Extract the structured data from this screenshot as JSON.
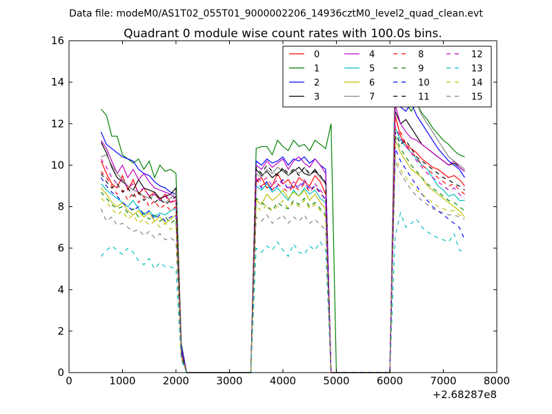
{
  "header": {
    "suptitle": "Data file: modeM0/AS1T02_055T01_9000002206_14936cztM0_level2_quad_clean.evt"
  },
  "chart_data": {
    "type": "line",
    "title": "Quadrant 0 module wise count rates with 100.0s bins.",
    "xlabel": "",
    "ylabel": "",
    "x_offset_label": "+2.68287e8",
    "xlim": [
      0,
      8000
    ],
    "ylim": [
      0,
      16
    ],
    "xticks": [
      0,
      1000,
      2000,
      3000,
      4000,
      5000,
      6000,
      7000,
      8000
    ],
    "yticks": [
      0,
      2,
      4,
      6,
      8,
      10,
      12,
      14,
      16
    ],
    "grid": false,
    "legend_position": "top-right",
    "x": [
      600,
      700,
      800,
      900,
      1000,
      1100,
      1200,
      1300,
      1400,
      1500,
      1600,
      1700,
      1800,
      1900,
      2000,
      2100,
      2200,
      2300,
      2400,
      2500,
      2600,
      2700,
      2800,
      2900,
      3000,
      3100,
      3200,
      3300,
      3400,
      3500,
      3600,
      3700,
      3800,
      3900,
      4000,
      4100,
      4200,
      4300,
      4400,
      4500,
      4600,
      4700,
      4800,
      4900,
      5000,
      5100,
      5200,
      5300,
      5400,
      5500,
      5600,
      5700,
      5800,
      5900,
      6000,
      6100,
      6200,
      6300,
      6400,
      6500,
      6600,
      6700,
      6800,
      6900,
      7000,
      7100,
      7200,
      7300,
      7400
    ],
    "series": [
      {
        "name": "0",
        "color": "#ff0000",
        "dash": "solid",
        "values": [
          10.2,
          9.6,
          9.1,
          8.9,
          9.5,
          8.8,
          9.3,
          8.6,
          8.9,
          8.5,
          8.7,
          8.3,
          8.6,
          8.2,
          8.3,
          1.2,
          0,
          0,
          0,
          0,
          0,
          0,
          0,
          0,
          0,
          0,
          0,
          0,
          0,
          9.2,
          9.4,
          8.9,
          9.0,
          9.6,
          9.1,
          9.3,
          8.9,
          9.4,
          9.2,
          9.0,
          9.5,
          9.2,
          8.6,
          0,
          0,
          0,
          0,
          0,
          0,
          0,
          0,
          0,
          0,
          0,
          0,
          12.4,
          11.4,
          11.0,
          10.8,
          10.6,
          10.3,
          10.1,
          9.9,
          9.8,
          9.6,
          9.4,
          9.5,
          9.3,
          9.0
        ]
      },
      {
        "name": "1",
        "color": "#008000",
        "dash": "solid",
        "values": [
          12.7,
          12.4,
          11.4,
          11.4,
          10.5,
          10.3,
          10.1,
          10.3,
          9.8,
          10.2,
          9.4,
          10.0,
          9.7,
          9.8,
          9.6,
          1.4,
          0,
          0,
          0,
          0,
          0,
          0,
          0,
          0,
          0,
          0,
          0,
          0,
          0,
          10.8,
          10.9,
          10.9,
          10.5,
          11.2,
          10.9,
          10.7,
          11.2,
          10.9,
          11.0,
          10.7,
          11.2,
          11.0,
          10.8,
          12.0,
          0,
          0,
          0,
          0,
          0,
          0,
          0,
          0,
          0,
          0,
          0,
          12.8,
          13.7,
          13.0,
          12.6,
          13.0,
          12.5,
          12.2,
          11.8,
          11.5,
          11.2,
          11.0,
          10.7,
          10.5,
          10.4
        ]
      },
      {
        "name": "2",
        "color": "#0000ff",
        "dash": "solid",
        "values": [
          11.6,
          11.0,
          10.8,
          10.6,
          10.4,
          10.3,
          10.2,
          9.8,
          9.6,
          9.5,
          9.2,
          9.0,
          8.9,
          8.7,
          8.6,
          1.3,
          0,
          0,
          0,
          0,
          0,
          0,
          0,
          0,
          0,
          0,
          0,
          0,
          0,
          10.2,
          10.0,
          10.3,
          10.1,
          10.2,
          10.4,
          10.0,
          10.3,
          10.2,
          10.4,
          10.1,
          10.3,
          10.0,
          9.8,
          0,
          0,
          0,
          0,
          0,
          0,
          0,
          0,
          0,
          0,
          0,
          0,
          13.2,
          12.8,
          12.6,
          13.0,
          12.4,
          12.0,
          11.6,
          11.2,
          10.8,
          10.5,
          10.2,
          10.0,
          9.8,
          9.4
        ]
      },
      {
        "name": "3",
        "color": "#000000",
        "dash": "solid",
        "values": [
          11.1,
          10.6,
          9.9,
          9.4,
          9.2,
          9.0,
          8.8,
          9.3,
          8.9,
          8.8,
          8.7,
          8.4,
          8.5,
          8.6,
          8.9,
          1.0,
          0,
          0,
          0,
          0,
          0,
          0,
          0,
          0,
          0,
          0,
          0,
          0,
          0,
          9.8,
          9.5,
          9.7,
          9.4,
          9.6,
          9.8,
          9.5,
          9.7,
          9.9,
          9.6,
          9.5,
          9.8,
          9.4,
          9.2,
          0,
          0,
          0,
          0,
          0,
          0,
          0,
          0,
          0,
          0,
          0,
          0,
          12.6,
          12.0,
          12.2,
          11.8,
          11.4,
          11.0,
          10.8,
          10.6,
          10.4,
          10.2,
          10.0,
          10.1,
          9.9,
          9.7
        ]
      },
      {
        "name": "4",
        "color": "#bf00bf",
        "dash": "solid",
        "values": [
          11.2,
          10.8,
          10.2,
          9.6,
          10.0,
          9.4,
          9.8,
          9.3,
          9.6,
          9.2,
          8.9,
          8.8,
          8.7,
          8.6,
          8.4,
          1.1,
          0,
          0,
          0,
          0,
          0,
          0,
          0,
          0,
          0,
          0,
          0,
          0,
          0,
          10.0,
          9.8,
          10.2,
          9.9,
          10.1,
          10.3,
          9.8,
          10.2,
          10.4,
          10.1,
          9.9,
          10.3,
          10.0,
          9.6,
          0,
          0,
          0,
          0,
          0,
          0,
          0,
          0,
          0,
          0,
          0,
          0,
          12.9,
          12.0,
          11.6,
          11.3,
          11.2,
          11.0,
          10.8,
          10.6,
          10.4,
          10.2,
          10.0,
          10.2,
          9.9,
          9.7
        ]
      },
      {
        "name": "5",
        "color": "#00bfbf",
        "dash": "solid",
        "values": [
          9.1,
          8.8,
          8.6,
          8.4,
          8.2,
          8.0,
          8.3,
          7.9,
          7.6,
          7.8,
          7.5,
          7.7,
          7.6,
          7.8,
          7.9,
          0.9,
          0,
          0,
          0,
          0,
          0,
          0,
          0,
          0,
          0,
          0,
          0,
          0,
          0,
          9.0,
          8.8,
          9.1,
          8.7,
          8.9,
          8.6,
          8.3,
          8.8,
          8.5,
          8.9,
          8.6,
          8.8,
          8.4,
          8.2,
          0,
          0,
          0,
          0,
          0,
          0,
          0,
          0,
          0,
          0,
          0,
          0,
          11.8,
          11.2,
          10.9,
          10.6,
          10.3,
          10.0,
          9.8,
          9.4,
          9.0,
          8.8,
          8.5,
          8.6,
          8.3,
          8.3
        ]
      },
      {
        "name": "6",
        "color": "#bfbf00",
        "dash": "solid",
        "values": [
          8.9,
          8.6,
          8.2,
          8.0,
          8.2,
          7.8,
          7.6,
          7.8,
          7.5,
          7.7,
          7.3,
          7.5,
          7.2,
          7.4,
          7.6,
          0.8,
          0,
          0,
          0,
          0,
          0,
          0,
          0,
          0,
          0,
          0,
          0,
          0,
          0,
          8.3,
          8.1,
          8.6,
          8.3,
          8.5,
          8.8,
          8.4,
          8.7,
          8.5,
          8.8,
          8.3,
          8.6,
          8.2,
          7.9,
          0,
          0,
          0,
          0,
          0,
          0,
          0,
          0,
          0,
          0,
          0,
          0,
          11.2,
          10.6,
          10.2,
          9.8,
          9.6,
          9.4,
          9.0,
          8.8,
          8.6,
          8.4,
          8.2,
          8.0,
          7.8,
          7.5
        ]
      },
      {
        "name": "7",
        "color": "#808080",
        "dash": "solid",
        "values": [
          10.4,
          10.5,
          10.0,
          9.6,
          9.3,
          9.0,
          8.8,
          8.7,
          8.5,
          8.4,
          8.6,
          8.3,
          8.2,
          8.4,
          8.7,
          1.0,
          0,
          0,
          0,
          0,
          0,
          0,
          0,
          0,
          0,
          0,
          0,
          0,
          0,
          9.6,
          9.4,
          9.8,
          9.6,
          9.9,
          9.7,
          9.5,
          9.8,
          9.6,
          9.9,
          9.5,
          9.7,
          9.4,
          9.1,
          0,
          0,
          0,
          0,
          0,
          0,
          0,
          0,
          0,
          0,
          0,
          0,
          15.1,
          14.1,
          14.0,
          13.6,
          13.0,
          12.4,
          12.0,
          11.6,
          11.2,
          10.8,
          10.4,
          10.2,
          10.0,
          9.8
        ]
      },
      {
        "name": "8",
        "color": "#ff0000",
        "dash": "dashed",
        "values": [
          9.7,
          9.4,
          9.0,
          8.6,
          8.8,
          8.3,
          8.7,
          8.2,
          8.5,
          8.0,
          8.3,
          7.9,
          8.1,
          7.8,
          8.0,
          0.9,
          0,
          0,
          0,
          0,
          0,
          0,
          0,
          0,
          0,
          0,
          0,
          0,
          0,
          9.4,
          9.0,
          9.2,
          8.8,
          9.1,
          8.9,
          8.7,
          9.0,
          8.8,
          9.1,
          8.7,
          9.0,
          8.6,
          8.4,
          0,
          0,
          0,
          0,
          0,
          0,
          0,
          0,
          0,
          0,
          0,
          0,
          12.2,
          11.6,
          11.0,
          10.6,
          10.4,
          10.0,
          9.8,
          9.6,
          9.4,
          9.2,
          9.0,
          9.1,
          8.8,
          8.6
        ]
      },
      {
        "name": "9",
        "color": "#008000",
        "dash": "dashed",
        "values": [
          8.7,
          8.4,
          8.1,
          7.9,
          8.0,
          7.7,
          7.9,
          7.5,
          7.7,
          7.4,
          7.6,
          7.3,
          7.5,
          7.2,
          7.4,
          0.8,
          0,
          0,
          0,
          0,
          0,
          0,
          0,
          0,
          0,
          0,
          0,
          0,
          0,
          8.4,
          8.2,
          8.0,
          7.8,
          8.2,
          8.0,
          7.9,
          8.3,
          8.1,
          8.4,
          8.0,
          8.2,
          7.9,
          7.6,
          0,
          0,
          0,
          0,
          0,
          0,
          0,
          0,
          0,
          0,
          0,
          0,
          11.4,
          10.8,
          10.4,
          10.0,
          9.7,
          9.4,
          9.1,
          8.9,
          8.7,
          8.5,
          8.3,
          8.2,
          8.0,
          7.8
        ]
      },
      {
        "name": "10",
        "color": "#0000ff",
        "dash": "dashed",
        "values": [
          9.4,
          9.0,
          8.7,
          8.5,
          8.2,
          8.0,
          7.8,
          8.0,
          7.6,
          7.8,
          7.4,
          7.6,
          7.3,
          7.5,
          7.6,
          0.9,
          0,
          0,
          0,
          0,
          0,
          0,
          0,
          0,
          0,
          0,
          0,
          0,
          0,
          9.3,
          8.9,
          9.2,
          8.8,
          9.0,
          9.3,
          8.8,
          9.1,
          8.9,
          9.2,
          8.8,
          9.0,
          8.7,
          8.3,
          0,
          0,
          0,
          0,
          0,
          0,
          0,
          0,
          0,
          0,
          0,
          0,
          10.8,
          10.2,
          9.8,
          9.4,
          9.0,
          8.6,
          8.3,
          8.0,
          7.8,
          7.6,
          7.4,
          7.2,
          7.0,
          6.4
        ]
      },
      {
        "name": "11",
        "color": "#000000",
        "dash": "dashed",
        "values": [
          9.6,
          9.2,
          8.9,
          9.1,
          8.7,
          8.9,
          8.5,
          8.7,
          8.3,
          8.5,
          8.2,
          8.4,
          8.1,
          8.3,
          8.5,
          1.0,
          0,
          0,
          0,
          0,
          0,
          0,
          0,
          0,
          0,
          0,
          0,
          0,
          0,
          9.9,
          9.6,
          10.0,
          9.7,
          9.5,
          9.9,
          9.6,
          9.8,
          9.5,
          9.9,
          9.6,
          9.7,
          9.5,
          9.1,
          0,
          0,
          0,
          0,
          0,
          0,
          0,
          0,
          0,
          0,
          0,
          0,
          11.6,
          11.0,
          11.2,
          10.8,
          10.4,
          10.2,
          10.0,
          9.8,
          9.6,
          9.4,
          9.3,
          9.1,
          9.0,
          8.8
        ]
      },
      {
        "name": "12",
        "color": "#bf00bf",
        "dash": "dashed",
        "values": [
          10.3,
          9.9,
          9.4,
          9.1,
          9.3,
          8.9,
          9.1,
          8.7,
          8.9,
          8.5,
          8.6,
          8.3,
          8.5,
          8.2,
          8.4,
          0.9,
          0,
          0,
          0,
          0,
          0,
          0,
          0,
          0,
          0,
          0,
          0,
          0,
          0,
          9.5,
          9.2,
          9.4,
          9.0,
          9.3,
          9.1,
          8.9,
          9.2,
          9.0,
          9.3,
          8.9,
          9.1,
          8.8,
          8.5,
          0,
          0,
          0,
          0,
          0,
          0,
          0,
          0,
          0,
          0,
          0,
          0,
          11.9,
          11.3,
          10.9,
          10.6,
          10.2,
          9.9,
          9.6,
          9.4,
          9.2,
          9.0,
          8.8,
          8.9,
          8.6,
          8.4
        ]
      },
      {
        "name": "13",
        "color": "#00bfbf",
        "dash": "dashed",
        "values": [
          5.6,
          5.9,
          6.1,
          5.9,
          5.7,
          6.0,
          5.8,
          5.4,
          5.2,
          5.5,
          5.0,
          5.3,
          5.1,
          5.1,
          5.0,
          0.6,
          0,
          0,
          0,
          0,
          0,
          0,
          0,
          0,
          0,
          0,
          0,
          0,
          0,
          6.0,
          5.8,
          6.1,
          5.9,
          6.3,
          5.9,
          5.6,
          6.2,
          5.8,
          5.7,
          6.1,
          5.9,
          6.3,
          5.9,
          0,
          0,
          0,
          0,
          0,
          0,
          0,
          0,
          0,
          0,
          0,
          0,
          6.6,
          7.7,
          7.0,
          7.2,
          7.4,
          7.0,
          6.8,
          6.6,
          6.5,
          6.4,
          6.3,
          6.7,
          5.9,
          5.8
        ]
      },
      {
        "name": "14",
        "color": "#bfbf00",
        "dash": "dashed",
        "values": [
          8.4,
          8.2,
          7.9,
          7.6,
          7.8,
          7.4,
          7.6,
          7.2,
          7.4,
          7.1,
          7.3,
          7.0,
          7.2,
          6.9,
          7.1,
          0.8,
          0,
          0,
          0,
          0,
          0,
          0,
          0,
          0,
          0,
          0,
          0,
          0,
          0,
          8.0,
          7.8,
          8.1,
          7.8,
          8.0,
          8.3,
          7.9,
          8.2,
          8.0,
          8.3,
          7.9,
          8.1,
          7.8,
          7.5,
          0,
          0,
          0,
          0,
          0,
          0,
          0,
          0,
          0,
          0,
          0,
          0,
          10.4,
          9.8,
          9.4,
          9.1,
          8.8,
          8.6,
          8.4,
          8.2,
          8.0,
          7.9,
          7.8,
          7.8,
          7.6,
          7.5
        ]
      },
      {
        "name": "15",
        "color": "#808080",
        "dash": "dashed",
        "values": [
          7.9,
          7.3,
          7.5,
          7.1,
          7.2,
          7.0,
          6.8,
          6.9,
          6.6,
          6.8,
          6.5,
          6.7,
          6.4,
          6.5,
          6.3,
          0.7,
          0,
          0,
          0,
          0,
          0,
          0,
          0,
          0,
          0,
          0,
          0,
          0,
          0,
          7.5,
          7.3,
          7.6,
          7.2,
          7.4,
          7.6,
          7.2,
          7.5,
          7.3,
          7.6,
          7.2,
          7.4,
          7.1,
          6.9,
          0,
          0,
          0,
          0,
          0,
          0,
          0,
          0,
          0,
          0,
          0,
          0,
          10.2,
          9.6,
          9.2,
          8.8,
          8.5,
          8.3,
          8.1,
          7.9,
          7.8,
          7.7,
          7.6,
          7.6,
          7.5,
          7.4
        ]
      }
    ]
  }
}
